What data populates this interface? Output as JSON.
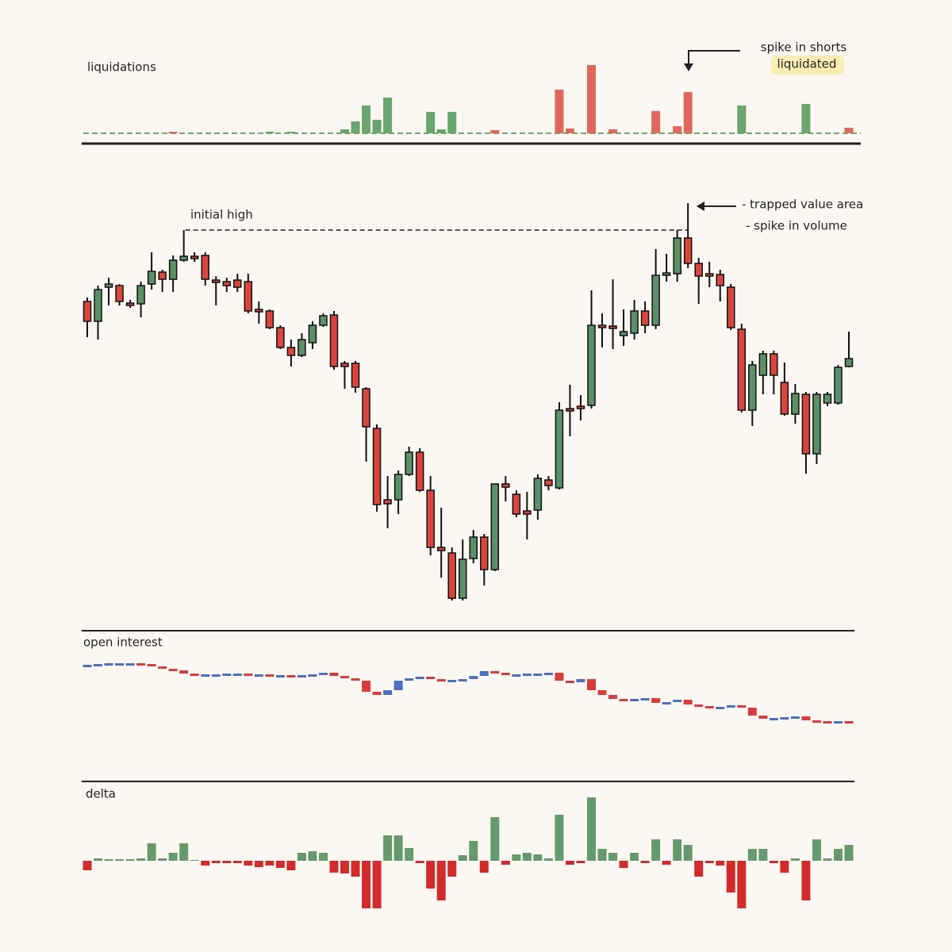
{
  "chart_data": [
    {
      "type": "bar",
      "title": "liquidations",
      "annotations": [
        "spike in shorts",
        "liquidated"
      ],
      "values": [
        0,
        0,
        0,
        0,
        0,
        0,
        0,
        0,
        2,
        0,
        0,
        0,
        0,
        0,
        0,
        0,
        0,
        2,
        0,
        2,
        0,
        0,
        0,
        0,
        5,
        15,
        35,
        17,
        45,
        0,
        0,
        0,
        27,
        5,
        27,
        0,
        0,
        0,
        4,
        0,
        0,
        0,
        0,
        0,
        55,
        6,
        0,
        86,
        0,
        5,
        0,
        0,
        0,
        28,
        0,
        9,
        52,
        0,
        0,
        0,
        0,
        35,
        0,
        0,
        0,
        0,
        0,
        37,
        0,
        0,
        0,
        7
      ],
      "colors": [
        "#6aa56e",
        "#6aa56e",
        "#6aa56e",
        "#6aa56e",
        "#6aa56e",
        "#6aa56e",
        "#6aa56e",
        "#6aa56e",
        "#e0675c",
        "#6aa56e",
        "#6aa56e",
        "#6aa56e",
        "#6aa56e",
        "#6aa56e",
        "#6aa56e",
        "#6aa56e",
        "#6aa56e",
        "#6aa56e",
        "#6aa56e",
        "#6aa56e",
        "#6aa56e",
        "#6aa56e",
        "#6aa56e",
        "#6aa56e",
        "#6aa56e",
        "#6aa56e",
        "#6aa56e",
        "#6aa56e",
        "#6aa56e",
        "#6aa56e",
        "#6aa56e",
        "#6aa56e",
        "#6aa56e",
        "#6aa56e",
        "#6aa56e",
        "#6aa56e",
        "#6aa56e",
        "#6aa56e",
        "#e0675c",
        "#6aa56e",
        "#6aa56e",
        "#6aa56e",
        "#6aa56e",
        "#6aa56e",
        "#e0675c",
        "#e0675c",
        "#6aa56e",
        "#e0675c",
        "#6aa56e",
        "#e0675c",
        "#6aa56e",
        "#6aa56e",
        "#6aa56e",
        "#e0675c",
        "#6aa56e",
        "#e0675c",
        "#e0675c",
        "#6aa56e",
        "#6aa56e",
        "#6aa56e",
        "#6aa56e",
        "#6aa56e",
        "#6aa56e",
        "#6aa56e",
        "#6aa56e",
        "#6aa56e",
        "#6aa56e",
        "#6aa56e",
        "#6aa56e",
        "#6aa56e",
        "#6aa56e",
        "#e0675c"
      ],
      "ylim": [
        0,
        100
      ]
    },
    {
      "type": "candlestick",
      "annotations": [
        "initial high",
        "- trapped value area",
        "- spike in volume"
      ],
      "open": [
        420,
        395,
        438,
        440,
        418,
        417,
        442,
        457,
        448,
        472,
        477,
        478,
        447,
        445,
        447,
        445,
        410,
        408,
        387,
        362,
        352,
        368,
        390,
        403,
        342,
        342,
        310,
        260,
        170,
        170,
        202,
        230,
        182,
        110,
        103,
        46,
        96,
        123,
        82,
        190,
        177,
        156,
        157,
        195,
        185,
        285,
        288,
        289,
        390,
        389,
        377,
        380,
        408,
        390,
        453,
        455,
        500,
        468,
        455,
        454,
        438,
        385,
        283,
        327,
        354,
        318,
        278,
        303,
        228,
        292,
        292,
        338
      ],
      "close": [
        395,
        435,
        442,
        420,
        415,
        440,
        458,
        448,
        472,
        477,
        474,
        448,
        444,
        440,
        438,
        408,
        407,
        387,
        362,
        352,
        372,
        390,
        402,
        338,
        338,
        312,
        262,
        164,
        165,
        202,
        230,
        182,
        110,
        106,
        46,
        95,
        123,
        82,
        190,
        186,
        152,
        152,
        197,
        188,
        283,
        282,
        285,
        390,
        387,
        386,
        382,
        408,
        390,
        453,
        456,
        500,
        468,
        452,
        452,
        440,
        387,
        283,
        340,
        354,
        327,
        278,
        304,
        228,
        303,
        303,
        337,
        348
      ],
      "high": [
        425,
        440,
        450,
        442,
        422,
        445,
        482,
        460,
        478,
        510,
        482,
        482,
        452,
        450,
        455,
        455,
        420,
        410,
        390,
        372,
        380,
        395,
        405,
        408,
        345,
        345,
        312,
        265,
        200,
        207,
        237,
        235,
        200,
        160,
        110,
        120,
        132,
        127,
        190,
        200,
        182,
        180,
        202,
        200,
        293,
        315,
        302,
        434,
        405,
        448,
        410,
        422,
        420,
        486,
        480,
        510,
        544,
        475,
        470,
        460,
        442,
        392,
        345,
        358,
        358,
        343,
        316,
        306,
        306,
        306,
        340,
        382
      ],
      "low": [
        375,
        372,
        415,
        415,
        412,
        400,
        435,
        432,
        432,
        470,
        470,
        440,
        415,
        432,
        432,
        405,
        392,
        385,
        360,
        338,
        350,
        360,
        388,
        334,
        310,
        305,
        218,
        155,
        134,
        152,
        200,
        180,
        100,
        72,
        43,
        43,
        90,
        62,
        80,
        168,
        148,
        120,
        145,
        182,
        183,
        250,
        270,
        285,
        362,
        360,
        364,
        372,
        380,
        385,
        445,
        445,
        462,
        417,
        438,
        420,
        384,
        280,
        263,
        303,
        303,
        276,
        266,
        203,
        215,
        288,
        290,
        337
      ],
      "up_color": "#5b8f64",
      "down_color": "#d9453d",
      "ylim": [
        0,
        600
      ]
    },
    {
      "type": "candlestick",
      "title": "open interest",
      "open": [
        111,
        112,
        113,
        114,
        114,
        114,
        113,
        110,
        107,
        105,
        101,
        100,
        100,
        100,
        101,
        101,
        100,
        100,
        99,
        99,
        98,
        99,
        100,
        102,
        98,
        95,
        92,
        78,
        74,
        80,
        92,
        95,
        97,
        94,
        92,
        93,
        94,
        98,
        104,
        102,
        100,
        100,
        101,
        101,
        102,
        92,
        90,
        94,
        80,
        74,
        69,
        68,
        69,
        70,
        64,
        65,
        68,
        62,
        60,
        59,
        59,
        61,
        58,
        48,
        44,
        45,
        46,
        47,
        42,
        41,
        40,
        41
      ],
      "close": [
        112,
        113,
        114,
        114,
        114,
        113,
        110,
        107,
        105,
        101,
        100,
        100,
        100,
        101,
        101,
        100,
        100,
        99,
        99,
        98,
        99,
        100,
        102,
        98,
        95,
        92,
        78,
        74,
        80,
        92,
        95,
        97,
        94,
        92,
        93,
        94,
        98,
        104,
        102,
        100,
        100,
        101,
        101,
        102,
        92,
        90,
        94,
        80,
        74,
        69,
        68,
        69,
        70,
        64,
        65,
        68,
        62,
        60,
        59,
        59,
        61,
        58,
        48,
        44,
        45,
        46,
        47,
        42,
        41,
        40,
        41,
        38
      ],
      "up_color": "#4a6fc4",
      "down_color": "#d63c3c",
      "ylim": [
        20,
        130
      ]
    },
    {
      "type": "bar",
      "title": "delta",
      "values": [
        -12,
        3,
        2,
        2,
        2,
        3,
        22,
        3,
        10,
        22,
        1,
        -6,
        -3,
        -3,
        -3,
        -6,
        -8,
        -6,
        -9,
        -12,
        10,
        12,
        10,
        -15,
        -16,
        -20,
        -60,
        -60,
        32,
        32,
        16,
        -3,
        -35,
        -50,
        -20,
        7,
        25,
        -15,
        55,
        -5,
        8,
        10,
        8,
        3,
        58,
        -5,
        -3,
        80,
        15,
        10,
        -9,
        10,
        -3,
        27,
        -5,
        27,
        20,
        -20,
        -3,
        -6,
        -40,
        -60,
        15,
        15,
        -3,
        -15,
        3,
        -50,
        27,
        3,
        15,
        20
      ],
      "up_color": "#66996b",
      "down_color": "#d12b2b",
      "ylim": [
        -65,
        85
      ]
    }
  ]
}
